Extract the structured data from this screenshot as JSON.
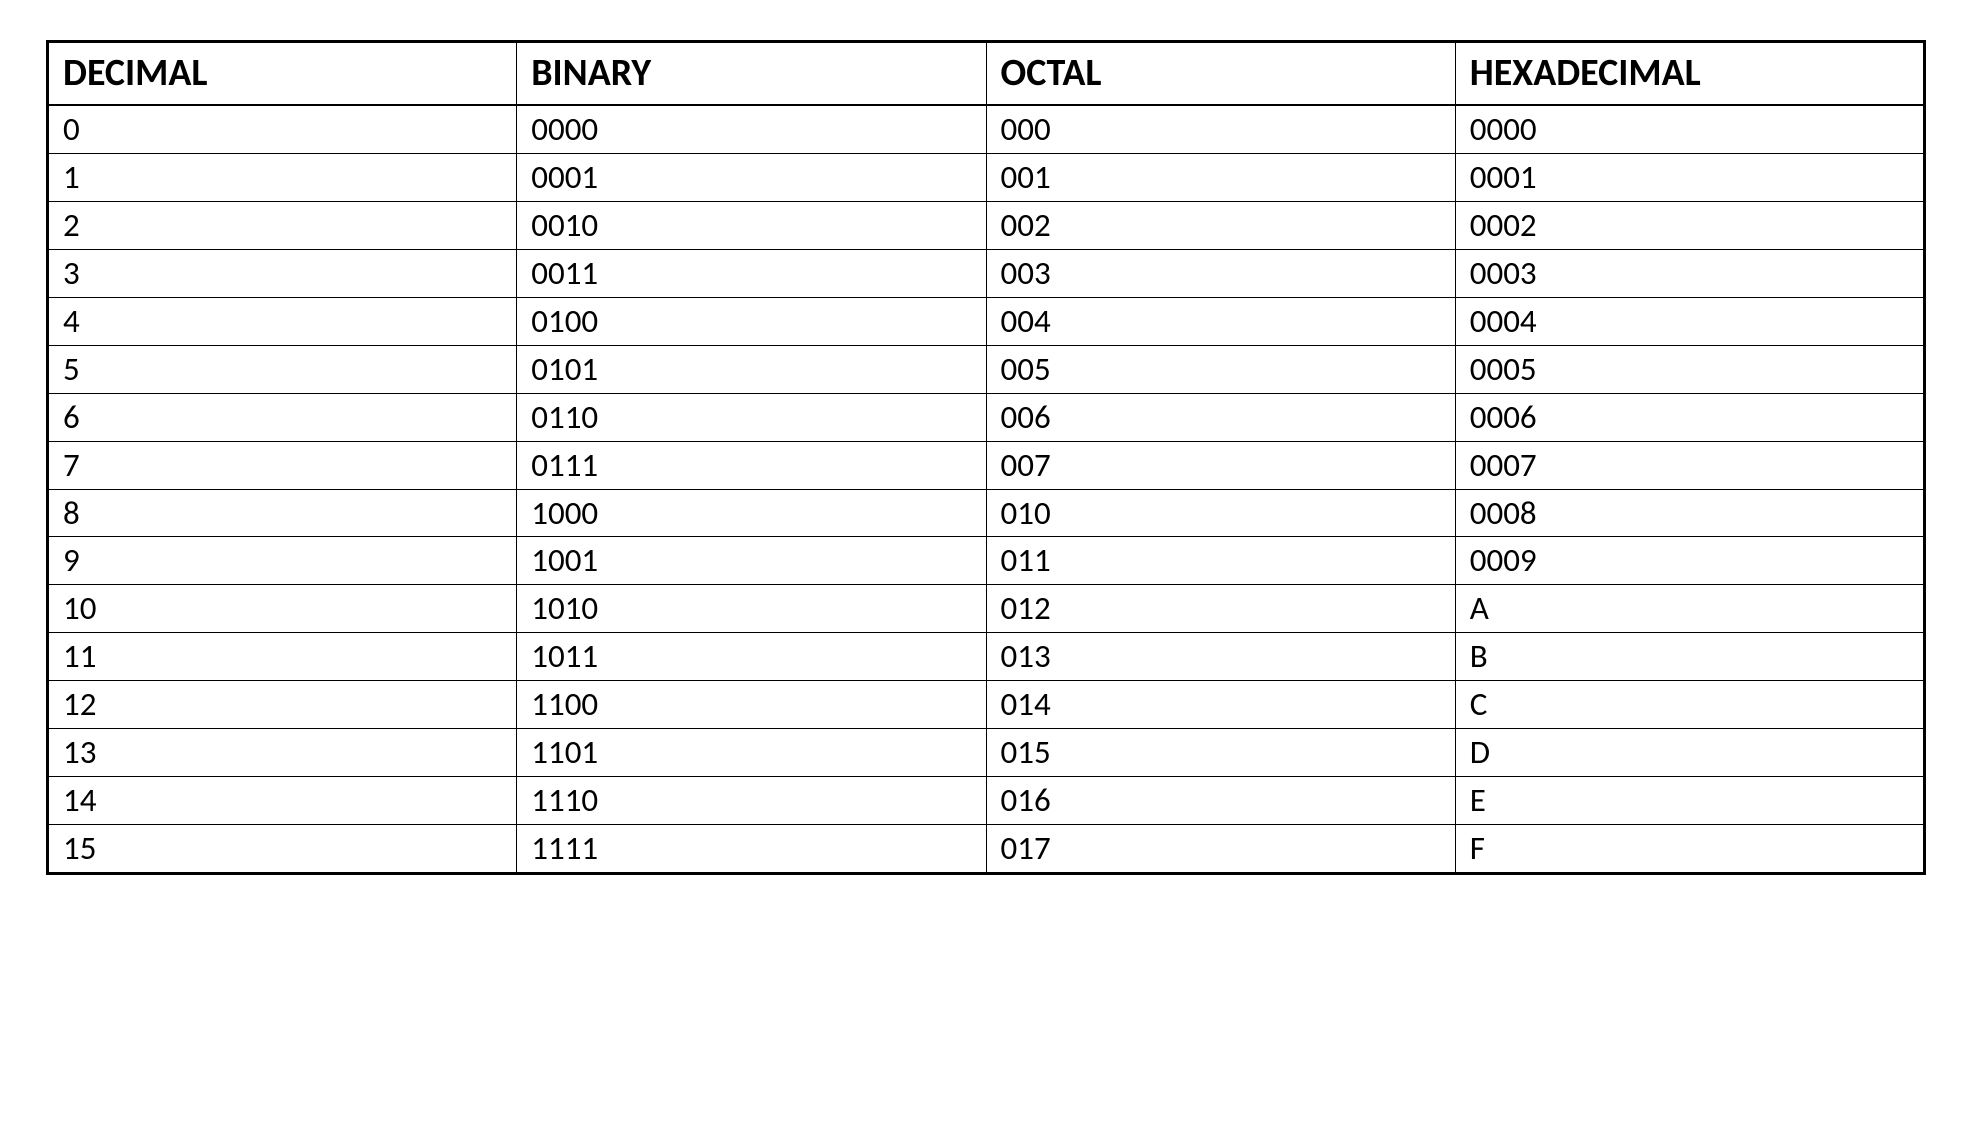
{
  "table": {
    "type": "table",
    "background_color": "#ffffff",
    "border_color": "#000000",
    "outer_border_width": 3,
    "inner_border_width": 1,
    "text_color": "#000000",
    "header_fontsize": 38,
    "cell_fontsize": 33,
    "header_fontweight": "bold",
    "font_family": "Calibri, Arial, sans-serif",
    "columns": [
      "DECIMAL",
      "BINARY",
      "OCTAL",
      "HEXADECIMAL"
    ],
    "column_widths": [
      "25%",
      "25%",
      "25%",
      "25%"
    ],
    "rows": [
      [
        "0",
        "0000",
        "000",
        "0000"
      ],
      [
        "1",
        "0001",
        "001",
        "0001"
      ],
      [
        "2",
        "0010",
        "002",
        "0002"
      ],
      [
        "3",
        "0011",
        "003",
        "0003"
      ],
      [
        "4",
        "0100",
        "004",
        "0004"
      ],
      [
        "5",
        "0101",
        "005",
        "0005"
      ],
      [
        "6",
        "0110",
        "006",
        "0006"
      ],
      [
        "7",
        "0111",
        "007",
        "0007"
      ],
      [
        "8",
        "1000",
        "010",
        "0008"
      ],
      [
        "9",
        "1001",
        "011",
        "0009"
      ],
      [
        "10",
        "1010",
        "012",
        "A"
      ],
      [
        "11",
        "1011",
        "013",
        "B"
      ],
      [
        "12",
        "1100",
        "014",
        "C"
      ],
      [
        "13",
        "1101",
        "015",
        "D"
      ],
      [
        "14",
        "1110",
        "016",
        "E"
      ],
      [
        "15",
        "1111",
        "017",
        "F"
      ]
    ]
  }
}
